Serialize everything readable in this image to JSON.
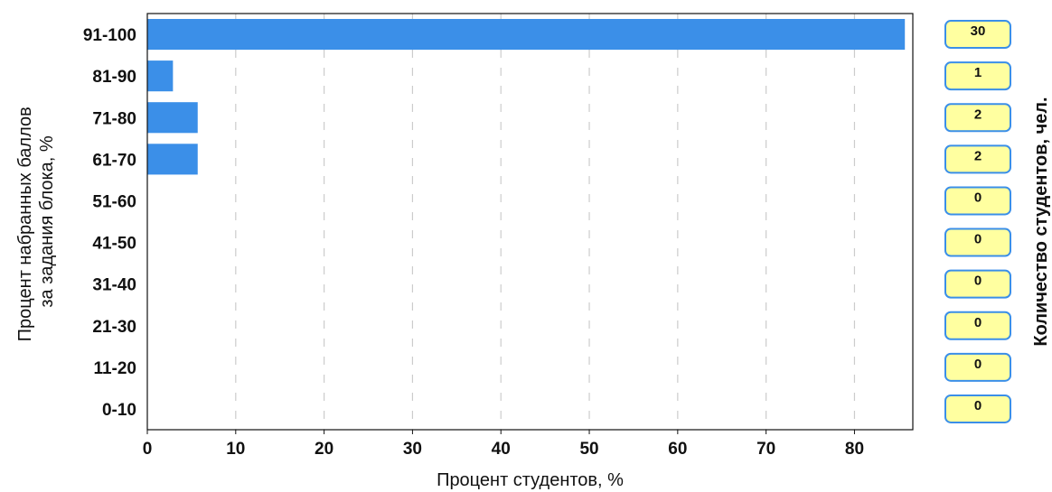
{
  "chart_data": {
    "type": "bar",
    "orientation": "horizontal",
    "categories": [
      "91-100",
      "81-90",
      "71-80",
      "61-70",
      "51-60",
      "41-50",
      "31-40",
      "21-30",
      "11-20",
      "0-10"
    ],
    "values": [
      85.7,
      2.9,
      5.7,
      5.7,
      0,
      0,
      0,
      0,
      0,
      0
    ],
    "counts": [
      "30",
      "1",
      "2",
      "2",
      "0",
      "0",
      "0",
      "0",
      "0",
      "0"
    ],
    "xlabel": "Процент студентов, %",
    "ylabel_lines": [
      "Процент набранных баллов",
      "за задания блока, %"
    ],
    "right_label": "Количество студентов, чел.",
    "xlim": [
      0,
      86.6
    ],
    "xticks": [
      0,
      10,
      20,
      30,
      40,
      50,
      60,
      70,
      80
    ],
    "grid": "vertical-dashed",
    "colors": {
      "bar": "#3b8fe8",
      "badge_fill": "#ffffa0",
      "badge_stroke": "#3b8fe8",
      "grid": "#cccccc"
    }
  }
}
